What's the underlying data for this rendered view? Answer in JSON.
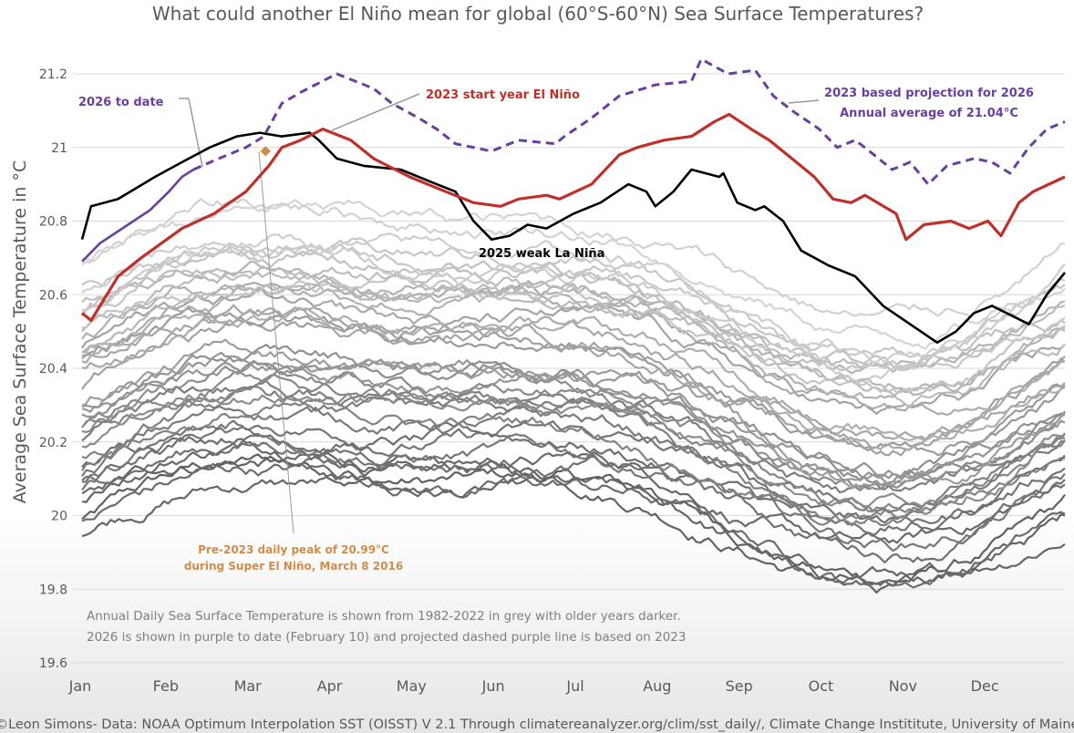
{
  "chart_data": {
    "type": "line",
    "title": "What could another El Niño mean for global (60°S-60°N) Sea Surface Temperatures?",
    "xlabel": "",
    "ylabel": "Average Sea Surface Temperature in °C",
    "ylim": [
      19.6,
      21.2
    ],
    "yticks": [
      {
        "value": 21.2,
        "label": "21.2"
      },
      {
        "value": 21.0,
        "label": "21"
      },
      {
        "value": 20.8,
        "label": "20.8"
      },
      {
        "value": 20.6,
        "label": "20.6"
      },
      {
        "value": 20.4,
        "label": "20.4"
      },
      {
        "value": 20.2,
        "label": "20.2"
      },
      {
        "value": 20.0,
        "label": "20"
      },
      {
        "value": 19.8,
        "label": "19.8"
      },
      {
        "value": 19.6,
        "label": "19.6"
      }
    ],
    "x_unit": "month (0 = Jan 1, 12 = Dec 31)",
    "xlim": [
      0,
      12
    ],
    "xticks": [
      "Jan",
      "Feb",
      "Mar",
      "Apr",
      "May",
      "Jun",
      "Jul",
      "Aug",
      "Sep",
      "Oct",
      "Nov",
      "Dec"
    ],
    "grid": true,
    "series": [
      {
        "name": "2023 start year El Niño",
        "color": "#c0302a",
        "style": "solid-thick",
        "x": [
          0,
          0.11,
          0.44,
          0.72,
          1.22,
          1.61,
          2.0,
          2.28,
          2.44,
          2.67,
          2.94,
          3.28,
          3.56,
          4.0,
          4.44,
          4.78,
          5.11,
          5.33,
          5.67,
          5.83,
          6.22,
          6.56,
          6.78,
          7.11,
          7.44,
          7.72,
          7.9,
          8.17,
          8.39,
          8.61,
          8.94,
          9.17,
          9.39,
          9.56,
          9.94,
          10.06,
          10.28,
          10.61,
          10.83,
          11.06,
          11.22,
          11.44,
          11.61,
          12.0
        ],
        "y": [
          20.55,
          20.53,
          20.65,
          20.7,
          20.78,
          20.82,
          20.88,
          20.95,
          21.0,
          21.02,
          21.05,
          21.02,
          20.97,
          20.92,
          20.88,
          20.85,
          20.84,
          20.86,
          20.87,
          20.86,
          20.9,
          20.98,
          21.0,
          21.02,
          21.03,
          21.07,
          21.09,
          21.05,
          21.02,
          20.98,
          20.92,
          20.86,
          20.85,
          20.87,
          20.82,
          20.75,
          20.79,
          20.8,
          20.78,
          20.8,
          20.76,
          20.85,
          20.88,
          20.92
        ]
      },
      {
        "name": "2025 weak La Niña",
        "color": "#000000",
        "style": "solid",
        "x": [
          0,
          0.11,
          0.44,
          0.89,
          1.22,
          1.56,
          1.89,
          2.17,
          2.44,
          2.78,
          2.89,
          3.11,
          3.44,
          3.89,
          4.33,
          4.56,
          4.78,
          5.0,
          5.22,
          5.44,
          5.67,
          6.0,
          6.33,
          6.67,
          6.89,
          7.0,
          7.22,
          7.44,
          7.78,
          7.83,
          8.0,
          8.22,
          8.33,
          8.56,
          8.78,
          9.11,
          9.44,
          9.78,
          10.11,
          10.44,
          10.67,
          10.89,
          11.11,
          11.56,
          11.78,
          12.0
        ],
        "y": [
          20.75,
          20.84,
          20.86,
          20.92,
          20.96,
          21.0,
          21.03,
          21.04,
          21.03,
          21.04,
          21.02,
          20.97,
          20.95,
          20.94,
          20.9,
          20.88,
          20.8,
          20.75,
          20.76,
          20.79,
          20.78,
          20.82,
          20.85,
          20.9,
          20.88,
          20.84,
          20.88,
          20.94,
          20.92,
          20.93,
          20.85,
          20.83,
          20.84,
          20.8,
          20.72,
          20.68,
          20.65,
          20.57,
          20.52,
          20.47,
          20.5,
          20.55,
          20.57,
          20.52,
          20.6,
          20.66
        ]
      },
      {
        "name": "2026 to date",
        "color": "#6a3fa0",
        "style": "solid",
        "x": [
          0,
          0.22,
          0.56,
          0.83,
          1.06,
          1.22,
          1.36
        ],
        "y": [
          20.69,
          20.74,
          20.79,
          20.83,
          20.88,
          20.92,
          20.94
        ]
      },
      {
        "name": "2023 based projection for 2026",
        "color": "#6a3fa0",
        "style": "dashed",
        "x": [
          1.36,
          1.67,
          2.0,
          2.22,
          2.44,
          2.67,
          3.11,
          3.56,
          3.78,
          4.11,
          4.33,
          4.56,
          5.0,
          5.33,
          5.78,
          5.89,
          6.22,
          6.56,
          7.0,
          7.44,
          7.56,
          7.89,
          8.22,
          8.44,
          8.67,
          9.0,
          9.22,
          9.44,
          9.67,
          9.89,
          10.11,
          10.33,
          10.56,
          10.89,
          11.11,
          11.33,
          11.56,
          11.78,
          12.0
        ],
        "y": [
          20.94,
          20.97,
          21.0,
          21.03,
          21.12,
          21.15,
          21.2,
          21.16,
          21.12,
          21.08,
          21.05,
          21.01,
          20.99,
          21.02,
          21.01,
          21.03,
          21.08,
          21.14,
          21.17,
          21.18,
          21.24,
          21.2,
          21.21,
          21.14,
          21.1,
          21.05,
          21.0,
          21.02,
          20.98,
          20.94,
          20.96,
          20.9,
          20.95,
          20.97,
          20.96,
          20.93,
          21.0,
          21.05,
          21.07
        ]
      }
    ],
    "background_series": {
      "description": "Annual daily SST 1982-2022 in grey, older years darker",
      "years_from": 1982,
      "years_to": 2022,
      "color_oldest": "#606060",
      "color_newest": "#d4d4d4",
      "approx_annual_mean_oldest": 20.05,
      "approx_annual_mean_newest": 20.75
    },
    "markers": [
      {
        "name": "pre-2023-peak",
        "x": 2.24,
        "y": 20.99,
        "color": "#d08c4a"
      }
    ],
    "annotations": [
      {
        "id": "a2026",
        "text": "2026 to date",
        "color": "#6a3fa0"
      },
      {
        "id": "a2023",
        "text": "2023 start year El Niño",
        "color": "#c0302a"
      },
      {
        "id": "aproj1",
        "text": "2023 based projection for 2026",
        "color": "#6a3fa0"
      },
      {
        "id": "aproj2",
        "text": "Annual average of 21.04°C",
        "color": "#6a3fa0"
      },
      {
        "id": "a2025",
        "text": "2025 weak La Niña",
        "color": "#000000"
      },
      {
        "id": "apeak1",
        "text": "Pre-2023 daily peak of 20.99°C",
        "color": "#d08c4a"
      },
      {
        "id": "apeak2",
        "text": "during Super El Niño, March 8 2016",
        "color": "#d08c4a"
      }
    ],
    "notes": [
      "Annual Daily Sea Surface Temperature is shown from 1982-2022 in grey with older years darker.",
      "2026 is shown in purple to date (February 10) and projected dashed purple line is based on 2023"
    ],
    "credit": "©Leon Simons- Data: NOAA Optimum Interpolation SST (OISST) V 2.1 Through climatereanalyzer.org/clim/sst_daily/, Climate Change Instititute, University of Maine"
  }
}
